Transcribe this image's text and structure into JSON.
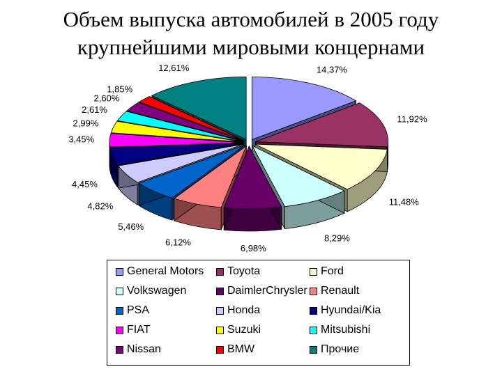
{
  "title": {
    "line1": "Объем выпуска автомобилей в 2005 году",
    "line2": "крупнейшими мировыми концернами"
  },
  "chart_data": {
    "type": "pie",
    "title": "Объем выпуска автомобилей в 2005 году крупнейшими мировыми концернами",
    "unit": "%",
    "legend_placement": "bottom",
    "slices": [
      {
        "name": "General Motors",
        "label": "14,37%",
        "value": 14.37,
        "color": "#9999ff"
      },
      {
        "name": "Toyota",
        "label": "11,92%",
        "value": 11.92,
        "color": "#993366"
      },
      {
        "name": "Ford",
        "label": "11,48%",
        "value": 11.48,
        "color": "#ffffcc"
      },
      {
        "name": "Volkswagen",
        "label": "8,29%",
        "value": 8.29,
        "color": "#ccffff"
      },
      {
        "name": "DaimlerChrysler",
        "label": "6,98%",
        "value": 6.98,
        "color": "#660066"
      },
      {
        "name": "Renault",
        "label": "6,12%",
        "value": 6.12,
        "color": "#ff8080"
      },
      {
        "name": "PSA",
        "label": "5,46%",
        "value": 5.46,
        "color": "#0066cc"
      },
      {
        "name": "Honda",
        "label": "4,82%",
        "value": 4.82,
        "color": "#ccccff"
      },
      {
        "name": "Hyundai/Kia",
        "label": "4,45%",
        "value": 4.45,
        "color": "#000080"
      },
      {
        "name": "FIAT",
        "label": "3,45%",
        "value": 3.45,
        "color": "#ff00ff"
      },
      {
        "name": "Suzuki",
        "label": "2,99%",
        "value": 2.99,
        "color": "#ffff00"
      },
      {
        "name": "Mitsubishi",
        "label": "2,61%",
        "value": 2.61,
        "color": "#00ffff"
      },
      {
        "name": "Nissan",
        "label": "2,60%",
        "value": 2.6,
        "color": "#800080"
      },
      {
        "name": "BMW",
        "label": "1,85%",
        "value": 1.85,
        "color": "#ff0000"
      },
      {
        "name": "Прочие",
        "label": "12,61%",
        "value": 12.61,
        "color": "#008080"
      }
    ]
  }
}
